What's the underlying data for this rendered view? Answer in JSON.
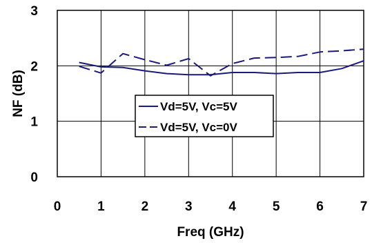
{
  "chart_data": {
    "type": "line",
    "title": "",
    "xlabel": "Freq (GHz)",
    "ylabel": "NF (dB)",
    "xlim": [
      0,
      7
    ],
    "ylim": [
      0,
      3
    ],
    "xticks": [
      "0",
      "1",
      "2",
      "3",
      "4",
      "5",
      "6",
      "7"
    ],
    "yticks": [
      "0",
      "1",
      "2",
      "3"
    ],
    "grid": true,
    "legend_position": "center",
    "series": [
      {
        "name": "Vd=5V, Vc=5V",
        "style": "solid",
        "color": "#1a1a7a",
        "x": [
          0.5,
          1.0,
          1.5,
          2.0,
          2.5,
          3.0,
          3.5,
          4.0,
          4.5,
          5.0,
          5.5,
          6.0,
          6.5,
          7.0
        ],
        "y": [
          2.06,
          1.98,
          1.97,
          1.91,
          1.86,
          1.84,
          1.84,
          1.88,
          1.88,
          1.86,
          1.88,
          1.88,
          1.95,
          2.09
        ]
      },
      {
        "name": "Vd=5V, Vc=0V",
        "style": "dashed",
        "color": "#1a1a7a",
        "x": [
          0.5,
          1.0,
          1.5,
          2.0,
          2.5,
          3.0,
          3.5,
          4.0,
          4.5,
          5.0,
          5.5,
          6.0,
          6.5,
          7.0
        ],
        "y": [
          1.99,
          1.87,
          2.22,
          2.11,
          2.01,
          2.13,
          1.82,
          2.04,
          2.14,
          2.15,
          2.17,
          2.25,
          2.27,
          2.3
        ]
      }
    ]
  }
}
